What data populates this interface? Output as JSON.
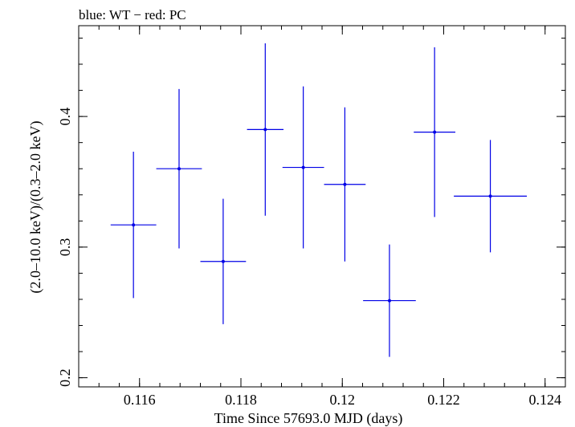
{
  "header": {
    "title": "blue: WT − red: PC"
  },
  "chart_data": {
    "type": "scatter",
    "title": "blue: WT − red: PC",
    "xlabel": "Time Since 57693.0 MJD (days)",
    "ylabel": "(2.0–10.0 keV)/(0.3–2.0 keV)",
    "xlim": [
      0.1148,
      0.1244
    ],
    "ylim": [
      0.193,
      0.4695
    ],
    "x_ticks": [
      0.116,
      0.118,
      0.12,
      0.122,
      0.124
    ],
    "x_tick_labels": [
      "0.116",
      "0.118",
      "0.12",
      "0.122",
      "0.124"
    ],
    "y_ticks": [
      0.2,
      0.3,
      0.4
    ],
    "y_tick_labels": [
      "0.2",
      "0.3",
      "0.4"
    ],
    "grid": false,
    "series": [
      {
        "color": "#0000e6",
        "points": [
          {
            "x": 0.11588,
            "xerr": 0.00045,
            "y": 0.317,
            "yerr_low": 0.056,
            "yerr_high": 0.056
          },
          {
            "x": 0.11678,
            "xerr": 0.00045,
            "y": 0.36,
            "yerr_low": 0.061,
            "yerr_high": 0.061
          },
          {
            "x": 0.11765,
            "xerr": 0.00045,
            "y": 0.289,
            "yerr_low": 0.048,
            "yerr_high": 0.048
          },
          {
            "x": 0.11848,
            "xerr": 0.00036,
            "y": 0.39,
            "yerr_low": 0.066,
            "yerr_high": 0.066
          },
          {
            "x": 0.11923,
            "xerr": 0.00041,
            "y": 0.361,
            "yerr_low": 0.062,
            "yerr_high": 0.062
          },
          {
            "x": 0.12005,
            "xerr": 0.00041,
            "y": 0.348,
            "yerr_low": 0.059,
            "yerr_high": 0.059
          },
          {
            "x": 0.12093,
            "xerr": 0.00052,
            "y": 0.259,
            "yerr_low": 0.043,
            "yerr_high": 0.043
          },
          {
            "x": 0.12182,
            "xerr": 0.00041,
            "y": 0.388,
            "yerr_low": 0.065,
            "yerr_high": 0.065
          },
          {
            "x": 0.12292,
            "xerr": 0.00072,
            "y": 0.339,
            "yerr_low": 0.043,
            "yerr_high": 0.043
          }
        ]
      }
    ]
  }
}
